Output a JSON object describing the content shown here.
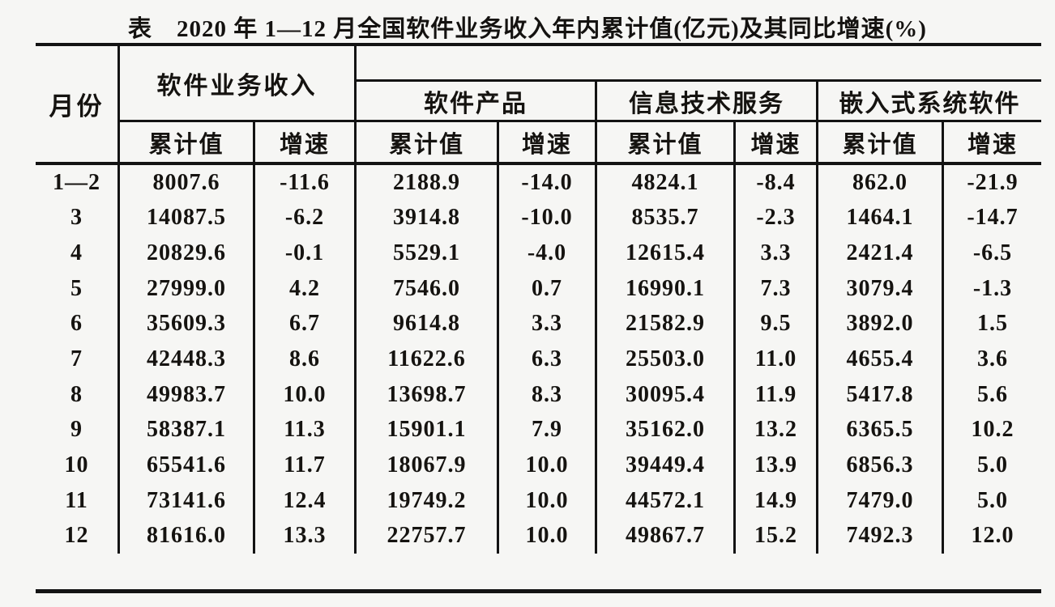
{
  "title": "表　2020 年 1—12 月全国软件业务收入年内累计值(亿元)及其同比增速(%)",
  "table": {
    "month_header": "月份",
    "groups": [
      {
        "label": "软件业务收入"
      },
      {
        "label": "软件产品"
      },
      {
        "label": "信息技术服务"
      },
      {
        "label": "嵌入式系统软件"
      }
    ],
    "sub_headers": [
      "累计值",
      "增速",
      "累计值",
      "增速",
      "累计值",
      "增速",
      "累计值",
      "增速"
    ],
    "rows": [
      {
        "month": "1—2",
        "values": [
          "8007.6",
          "-11.6",
          "2188.9",
          "-14.0",
          "4824.1",
          "-8.4",
          "862.0",
          "-21.9"
        ]
      },
      {
        "month": "3",
        "values": [
          "14087.5",
          "-6.2",
          "3914.8",
          "-10.0",
          "8535.7",
          "-2.3",
          "1464.1",
          "-14.7"
        ]
      },
      {
        "month": "4",
        "values": [
          "20829.6",
          "-0.1",
          "5529.1",
          "-4.0",
          "12615.4",
          "3.3",
          "2421.4",
          "-6.5"
        ]
      },
      {
        "month": "5",
        "values": [
          "27999.0",
          "4.2",
          "7546.0",
          "0.7",
          "16990.1",
          "7.3",
          "3079.4",
          "-1.3"
        ]
      },
      {
        "month": "6",
        "values": [
          "35609.3",
          "6.7",
          "9614.8",
          "3.3",
          "21582.9",
          "9.5",
          "3892.0",
          "1.5"
        ]
      },
      {
        "month": "7",
        "values": [
          "42448.3",
          "8.6",
          "11622.6",
          "6.3",
          "25503.0",
          "11.0",
          "4655.4",
          "3.6"
        ]
      },
      {
        "month": "8",
        "values": [
          "49983.7",
          "10.0",
          "13698.7",
          "8.3",
          "30095.4",
          "11.9",
          "5417.8",
          "5.6"
        ]
      },
      {
        "month": "9",
        "values": [
          "58387.1",
          "11.3",
          "15901.1",
          "7.9",
          "35162.0",
          "13.2",
          "6365.5",
          "10.2"
        ]
      },
      {
        "month": "10",
        "values": [
          "65541.6",
          "11.7",
          "18067.9",
          "10.0",
          "39449.4",
          "13.9",
          "6856.3",
          "5.0"
        ]
      },
      {
        "month": "11",
        "values": [
          "73141.6",
          "12.4",
          "19749.2",
          "10.0",
          "44572.1",
          "14.9",
          "7479.0",
          "5.0"
        ]
      },
      {
        "month": "12",
        "values": [
          "81616.0",
          "13.3",
          "22757.7",
          "10.0",
          "49867.7",
          "15.2",
          "7492.3",
          "12.0"
        ]
      }
    ]
  },
  "chart_data": {
    "type": "table",
    "title": "表　2020 年 1—12 月全国软件业务收入年内累计值(亿元)及其同比增速(%)",
    "columns": [
      "月份",
      "软件业务收入 累计值",
      "软件业务收入 增速",
      "软件产品 累计值",
      "软件产品 增速",
      "信息技术服务 累计值",
      "信息技术服务 增速",
      "嵌入式系统软件 累计值",
      "嵌入式系统软件 增速"
    ],
    "rows": [
      [
        "1—2",
        8007.6,
        -11.6,
        2188.9,
        -14.0,
        4824.1,
        -8.4,
        862.0,
        -21.9
      ],
      [
        "3",
        14087.5,
        -6.2,
        3914.8,
        -10.0,
        8535.7,
        -2.3,
        1464.1,
        -14.7
      ],
      [
        "4",
        20829.6,
        -0.1,
        5529.1,
        -4.0,
        12615.4,
        3.3,
        2421.4,
        -6.5
      ],
      [
        "5",
        27999.0,
        4.2,
        7546.0,
        0.7,
        16990.1,
        7.3,
        3079.4,
        -1.3
      ],
      [
        "6",
        35609.3,
        6.7,
        9614.8,
        3.3,
        21582.9,
        9.5,
        3892.0,
        1.5
      ],
      [
        "7",
        42448.3,
        8.6,
        11622.6,
        6.3,
        25503.0,
        11.0,
        4655.4,
        3.6
      ],
      [
        "8",
        49983.7,
        10.0,
        13698.7,
        8.3,
        30095.4,
        11.9,
        5417.8,
        5.6
      ],
      [
        "9",
        58387.1,
        11.3,
        15901.1,
        7.9,
        35162.0,
        13.2,
        6365.5,
        10.2
      ],
      [
        "10",
        65541.6,
        11.7,
        18067.9,
        10.0,
        39449.4,
        13.9,
        6856.3,
        5.0
      ],
      [
        "11",
        73141.6,
        12.4,
        19749.2,
        10.0,
        44572.1,
        14.9,
        7479.0,
        5.0
      ],
      [
        "12",
        81616.0,
        13.3,
        22757.7,
        10.0,
        49867.7,
        15.2,
        7492.3,
        12.0
      ]
    ]
  }
}
